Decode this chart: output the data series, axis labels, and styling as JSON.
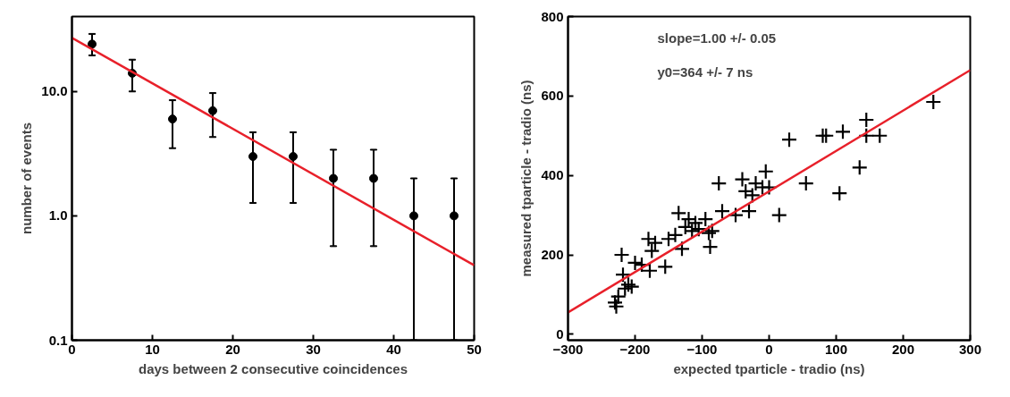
{
  "chart_data": [
    {
      "type": "scatter",
      "xlabel": "days between 2 consecutive coincidences",
      "ylabel": "number of events",
      "log": "y",
      "grid": false,
      "xlim": [
        0,
        50
      ],
      "ylim": [
        0.1,
        40
      ],
      "xticks": [
        0,
        10,
        20,
        30,
        40,
        50
      ],
      "yticks": [
        {
          "value": 0.1,
          "label": "0.1"
        },
        {
          "value": 1,
          "label": "1.0"
        },
        {
          "value": 10,
          "label": "10.0"
        }
      ],
      "series": [
        {
          "marker": "circle",
          "color": "#000000",
          "x": [
            2.5,
            7.5,
            12.5,
            17.5,
            22.5,
            27.5,
            32.5,
            37.5,
            42.5,
            47.5
          ],
          "values": [
            24,
            14,
            6,
            7,
            3,
            3,
            2,
            2,
            1,
            1
          ],
          "errors": [
            [
              19.5,
              29
            ],
            [
              10,
              18
            ],
            [
              3.5,
              8.5
            ],
            [
              4.3,
              9.7
            ],
            [
              1.27,
              4.7
            ],
            [
              1.27,
              4.7
            ],
            [
              0.57,
              3.4
            ],
            [
              0.57,
              3.4
            ],
            [
              0.1,
              2
            ],
            [
              0.1,
              2
            ]
          ]
        },
        {
          "type": "line",
          "color": "#e8202a",
          "x": [
            0,
            50
          ],
          "values": [
            27,
            0.4
          ]
        }
      ]
    },
    {
      "type": "scatter",
      "xlabel": "expected tparticle - tradio (ns)",
      "ylabel": "measured tparticle - tradio (ns)",
      "grid": false,
      "xlim": [
        -300,
        300
      ],
      "ylim": [
        -15,
        800
      ],
      "xticks": [
        -300,
        -200,
        -100,
        0,
        100,
        200,
        300
      ],
      "yticks": [
        0,
        200,
        400,
        600,
        800
      ],
      "annotations": [
        "slope=1.00 +/- 0.05",
        "y0=364 +/- 7 ns"
      ],
      "series": [
        {
          "marker": "cross",
          "color": "#000000",
          "x": [
            -230,
            -228,
            -225,
            -220,
            -218,
            -215,
            -210,
            -205,
            -200,
            -190,
            -180,
            -178,
            -175,
            -170,
            -155,
            -150,
            -140,
            -135,
            -130,
            -125,
            -120,
            -115,
            -110,
            -105,
            -95,
            -90,
            -88,
            -85,
            -75,
            -70,
            -50,
            -40,
            -35,
            -30,
            -25,
            -20,
            -10,
            -5,
            0,
            15,
            30,
            55,
            80,
            85,
            105,
            110,
            135,
            145,
            145,
            165,
            245
          ],
          "values": [
            80,
            70,
            95,
            200,
            150,
            115,
            125,
            120,
            180,
            175,
            240,
            160,
            210,
            230,
            170,
            240,
            250,
            305,
            215,
            270,
            290,
            260,
            280,
            265,
            290,
            255,
            220,
            260,
            380,
            310,
            300,
            390,
            360,
            310,
            350,
            380,
            370,
            410,
            370,
            300,
            490,
            380,
            500,
            500,
            355,
            510,
            420,
            540,
            500,
            500,
            585
          ]
        },
        {
          "type": "line",
          "color": "#e8202a",
          "x": [
            -300,
            300
          ],
          "values": [
            55,
            665
          ]
        }
      ]
    }
  ]
}
